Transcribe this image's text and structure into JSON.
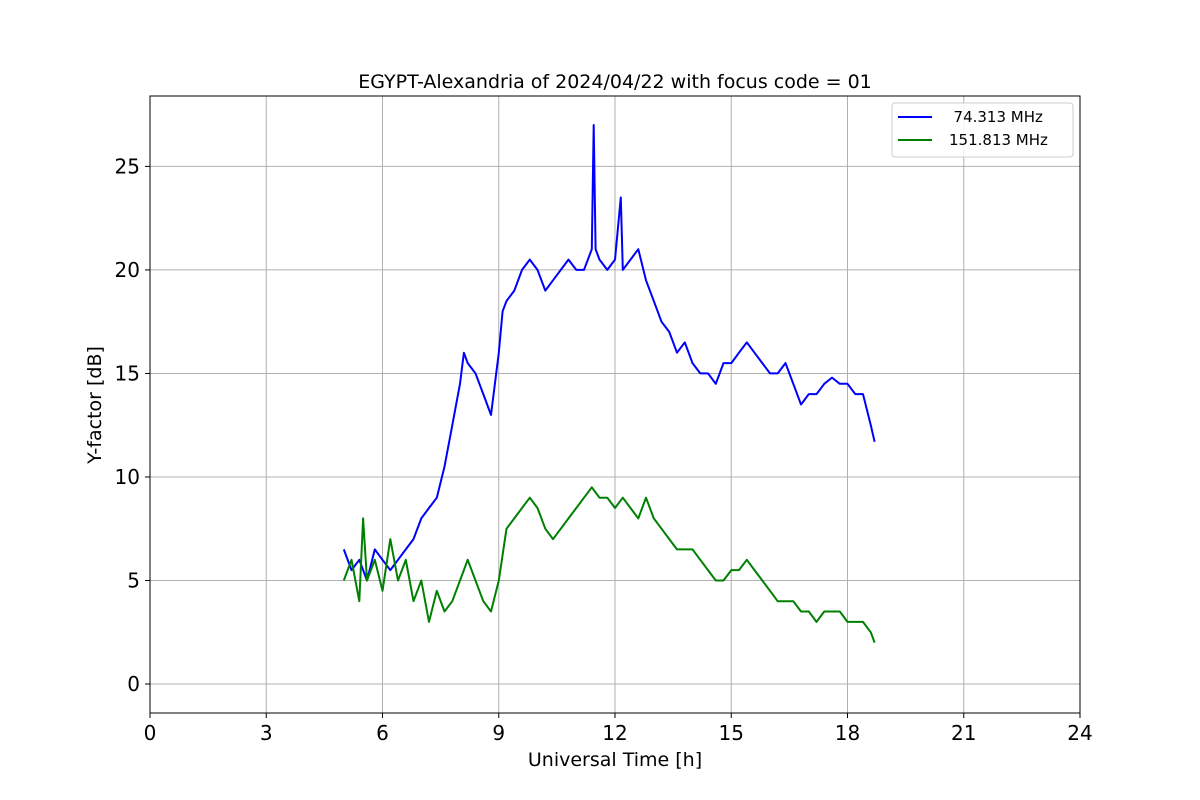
{
  "chart_data": {
    "type": "line",
    "title": "EGYPT-Alexandria of 2024/04/22 with focus code = 01",
    "xlabel": "Universal Time [h]",
    "ylabel": "Y-factor [dB]",
    "xlim": [
      0,
      24
    ],
    "ylim": [
      -1.4,
      28.4
    ],
    "xticks": [
      0,
      3,
      6,
      9,
      12,
      15,
      18,
      21,
      24
    ],
    "yticks": [
      0,
      5,
      10,
      15,
      20,
      25
    ],
    "grid": true,
    "legend_position": "top-right",
    "series": [
      {
        "name": "  74.313 MHz",
        "color": "#0000ff",
        "x": [
          5.0,
          5.2,
          5.4,
          5.6,
          5.8,
          6.0,
          6.2,
          6.4,
          6.6,
          6.8,
          7.0,
          7.2,
          7.4,
          7.6,
          7.8,
          8.0,
          8.1,
          8.2,
          8.4,
          8.6,
          8.8,
          9.0,
          9.1,
          9.2,
          9.4,
          9.6,
          9.8,
          10.0,
          10.2,
          10.4,
          10.6,
          10.8,
          11.0,
          11.2,
          11.4,
          11.45,
          11.5,
          11.6,
          11.8,
          12.0,
          12.15,
          12.2,
          12.4,
          12.6,
          12.8,
          13.0,
          13.2,
          13.4,
          13.6,
          13.8,
          14.0,
          14.2,
          14.4,
          14.6,
          14.8,
          15.0,
          15.2,
          15.4,
          15.6,
          15.8,
          16.0,
          16.2,
          16.4,
          16.6,
          16.8,
          17.0,
          17.2,
          17.4,
          17.6,
          17.8,
          18.0,
          18.2,
          18.4,
          18.6,
          18.7
        ],
        "y": [
          6.5,
          5.5,
          6.0,
          5.0,
          6.5,
          6.0,
          5.5,
          6.0,
          6.5,
          7.0,
          8.0,
          8.5,
          9.0,
          10.5,
          12.5,
          14.5,
          16.0,
          15.5,
          15.0,
          14.0,
          13.0,
          16.0,
          18.0,
          18.5,
          19.0,
          20.0,
          20.5,
          20.0,
          19.0,
          19.5,
          20.0,
          20.5,
          20.0,
          20.0,
          21.0,
          27.0,
          21.0,
          20.5,
          20.0,
          20.5,
          23.5,
          20.0,
          20.5,
          21.0,
          19.5,
          18.5,
          17.5,
          17.0,
          16.0,
          16.5,
          15.5,
          15.0,
          15.0,
          14.5,
          15.5,
          15.5,
          16.0,
          16.5,
          16.0,
          15.5,
          15.0,
          15.0,
          15.5,
          14.5,
          13.5,
          14.0,
          14.0,
          14.5,
          14.8,
          14.5,
          14.5,
          14.0,
          14.0,
          12.5,
          11.7
        ]
      },
      {
        "name": "151.813 MHz",
        "color": "#008000",
        "x": [
          5.0,
          5.2,
          5.4,
          5.5,
          5.6,
          5.8,
          6.0,
          6.2,
          6.4,
          6.6,
          6.8,
          7.0,
          7.2,
          7.4,
          7.6,
          7.8,
          8.0,
          8.2,
          8.4,
          8.6,
          8.8,
          9.0,
          9.2,
          9.4,
          9.6,
          9.8,
          10.0,
          10.2,
          10.4,
          10.6,
          10.8,
          11.0,
          11.2,
          11.4,
          11.6,
          11.8,
          12.0,
          12.2,
          12.4,
          12.6,
          12.8,
          13.0,
          13.2,
          13.4,
          13.6,
          13.8,
          14.0,
          14.2,
          14.4,
          14.6,
          14.8,
          15.0,
          15.2,
          15.4,
          15.6,
          15.8,
          16.0,
          16.2,
          16.4,
          16.6,
          16.8,
          17.0,
          17.2,
          17.4,
          17.6,
          17.8,
          18.0,
          18.2,
          18.4,
          18.6,
          18.7
        ],
        "y": [
          5.0,
          6.0,
          4.0,
          8.0,
          5.0,
          6.0,
          4.5,
          7.0,
          5.0,
          6.0,
          4.0,
          5.0,
          3.0,
          4.5,
          3.5,
          4.0,
          5.0,
          6.0,
          5.0,
          4.0,
          3.5,
          5.0,
          7.5,
          8.0,
          8.5,
          9.0,
          8.5,
          7.5,
          7.0,
          7.5,
          8.0,
          8.5,
          9.0,
          9.5,
          9.0,
          9.0,
          8.5,
          9.0,
          8.5,
          8.0,
          9.0,
          8.0,
          7.5,
          7.0,
          6.5,
          6.5,
          6.5,
          6.0,
          5.5,
          5.0,
          5.0,
          5.5,
          5.5,
          6.0,
          5.5,
          5.0,
          4.5,
          4.0,
          4.0,
          4.0,
          3.5,
          3.5,
          3.0,
          3.5,
          3.5,
          3.5,
          3.0,
          3.0,
          3.0,
          2.5,
          2.0
        ]
      }
    ]
  }
}
